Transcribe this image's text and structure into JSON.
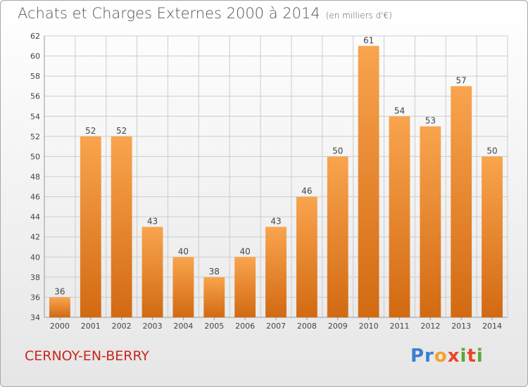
{
  "title": "Achats et Charges Externes 2000 à 2014",
  "subtitle": "(en milliers d'€)",
  "commune": "CERNOY-EN-BERRY",
  "logo_text": "Proxiti",
  "colors": {
    "bar_light": "#f9a44e",
    "bar_dark": "#d26a12",
    "grid": "#cccccc",
    "axis_text": "#444444",
    "commune": "#c8281e"
  },
  "chart_data": {
    "type": "bar",
    "title": "Achats et Charges Externes 2000 à 2014",
    "subtitle": "(en milliers d'€)",
    "categories": [
      "2000",
      "2001",
      "2002",
      "2003",
      "2004",
      "2005",
      "2006",
      "2007",
      "2008",
      "2009",
      "2010",
      "2011",
      "2012",
      "2013",
      "2014"
    ],
    "values": [
      36,
      52,
      52,
      43,
      40,
      38,
      40,
      43,
      46,
      50,
      61,
      54,
      53,
      57,
      50
    ],
    "ylim": [
      34,
      62
    ],
    "yticks": [
      34,
      36,
      38,
      40,
      42,
      44,
      46,
      48,
      50,
      52,
      54,
      56,
      58,
      60,
      62
    ],
    "grid": true,
    "data_labels": true
  }
}
